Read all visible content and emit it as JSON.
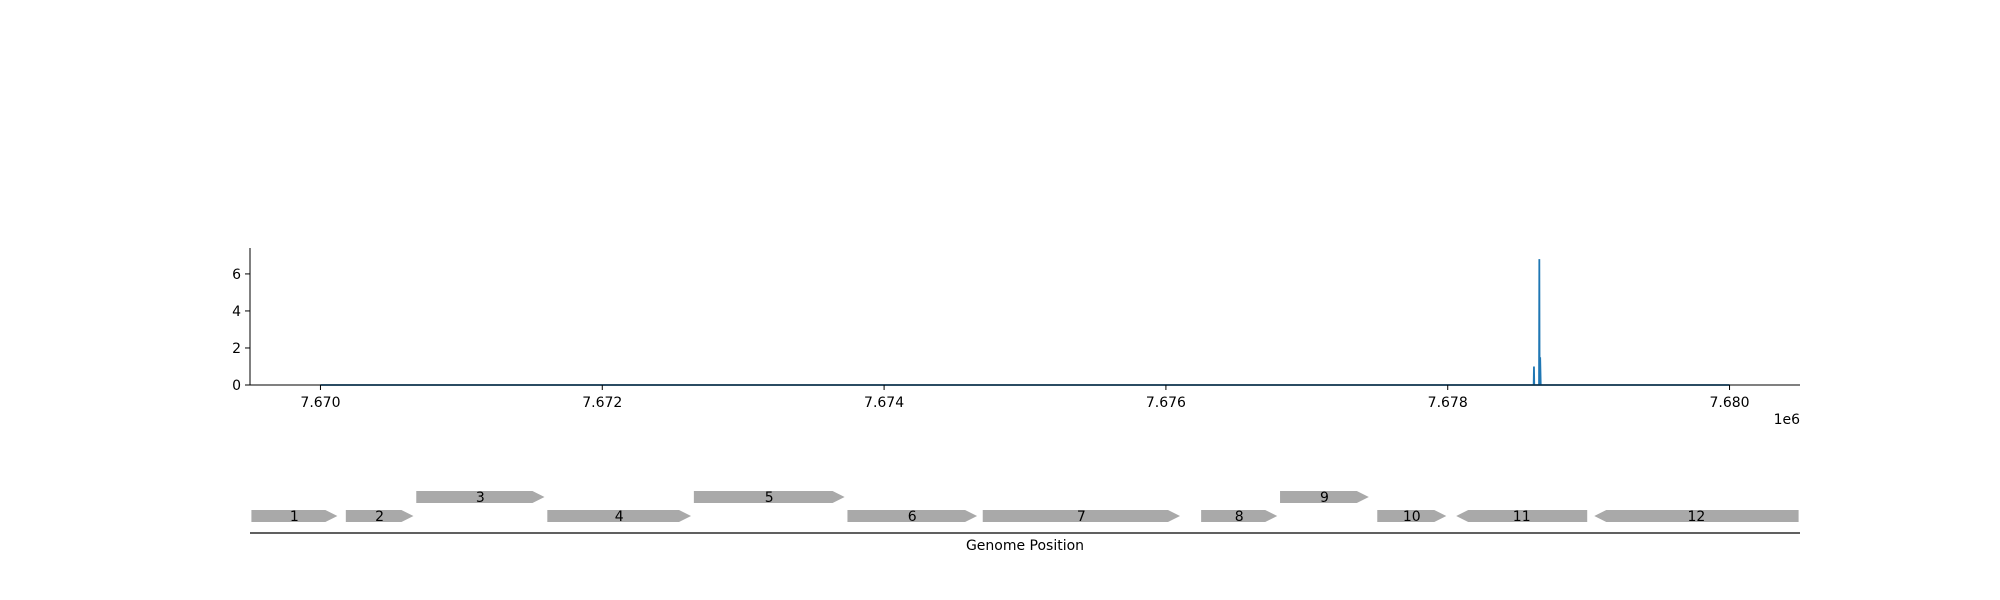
{
  "chart_data": [
    {
      "type": "line",
      "title": "",
      "xlabel": "",
      "ylabel": "",
      "x_offset_label": "1e6",
      "xlim": [
        7669500,
        7680500
      ],
      "ylim": [
        0,
        7.4
      ],
      "xticks": [
        7670000,
        7672000,
        7674000,
        7676000,
        7678000,
        7680000
      ],
      "xtick_labels": [
        "7.670",
        "7.672",
        "7.674",
        "7.676",
        "7.678",
        "7.680"
      ],
      "yticks": [
        0,
        2,
        4,
        6
      ],
      "ytick_labels": [
        "0",
        "2",
        "4",
        "6"
      ],
      "grid": false,
      "series": [
        {
          "color": "#1f77b4",
          "x": [
            7670000,
            7678600,
            7678610,
            7678612,
            7678614,
            7678620,
            7678640,
            7678648,
            7678650,
            7678652,
            7678656,
            7678660,
            7678680,
            7680000
          ],
          "y": [
            0,
            0,
            0,
            1.0,
            0,
            0,
            0,
            0,
            6.8,
            0,
            1.5,
            0,
            0,
            0
          ]
        }
      ]
    },
    {
      "type": "gene-track",
      "xlabel": "Genome Position",
      "feature_color": "#a9a9a9",
      "genes": [
        {
          "label": "1",
          "start": 7669510,
          "end": 7670120,
          "strand": 1,
          "row": 0
        },
        {
          "label": "2",
          "start": 7670180,
          "end": 7670660,
          "strand": 1,
          "row": 0
        },
        {
          "label": "3",
          "start": 7670680,
          "end": 7671590,
          "strand": 1,
          "row": 1
        },
        {
          "label": "4",
          "start": 7671610,
          "end": 7672630,
          "strand": 1,
          "row": 0
        },
        {
          "label": "5",
          "start": 7672650,
          "end": 7673720,
          "strand": 1,
          "row": 1
        },
        {
          "label": "6",
          "start": 7673740,
          "end": 7674660,
          "strand": 1,
          "row": 0
        },
        {
          "label": "7",
          "start": 7674700,
          "end": 7676100,
          "strand": 1,
          "row": 0
        },
        {
          "label": "8",
          "start": 7676250,
          "end": 7676790,
          "strand": 1,
          "row": 0
        },
        {
          "label": "9",
          "start": 7676810,
          "end": 7677440,
          "strand": 1,
          "row": 1
        },
        {
          "label": "10",
          "start": 7677500,
          "end": 7677990,
          "strand": 1,
          "row": 0
        },
        {
          "label": "11",
          "start": 7678060,
          "end": 7678990,
          "strand": -1,
          "row": 0
        },
        {
          "label": "12",
          "start": 7679040,
          "end": 7680490,
          "strand": -1,
          "row": 0
        }
      ]
    }
  ]
}
